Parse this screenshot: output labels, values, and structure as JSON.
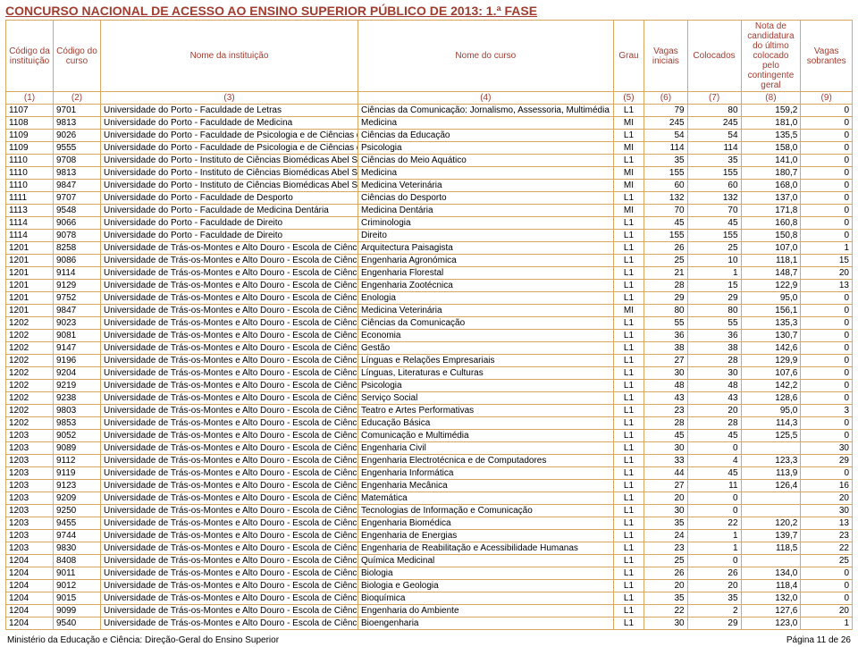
{
  "title": "CONCURSO NACIONAL DE ACESSO AO ENSINO SUPERIOR PÚBLICO DE 2013: 1.ª FASE",
  "headers": {
    "inst": "Código da instituição",
    "curso": "Código do curso",
    "nomeinst": "Nome da instituição",
    "nomecurso": "Nome do curso",
    "grau": "Grau",
    "vi": "Vagas iniciais",
    "col": "Colocados",
    "nota": "Nota de candidatura do último colocado pelo contingente geral",
    "vs": "Vagas sobrantes"
  },
  "subheaders": [
    "(1)",
    "(2)",
    "(3)",
    "(4)",
    "(5)",
    "(6)",
    "(7)",
    "(8)",
    "(9)"
  ],
  "rows": [
    [
      "1107",
      "9701",
      "Universidade do Porto - Faculdade de Letras",
      "Ciências da Comunicação: Jornalismo, Assessoria, Multimédia",
      "L1",
      "79",
      "80",
      "159,2",
      "0"
    ],
    [
      "1108",
      "9813",
      "Universidade do Porto - Faculdade de Medicina",
      "Medicina",
      "MI",
      "245",
      "245",
      "181,0",
      "0"
    ],
    [
      "1109",
      "9026",
      "Universidade do Porto - Faculdade de Psicologia e de Ciências da Educação",
      "Ciências da Educação",
      "L1",
      "54",
      "54",
      "135,5",
      "0"
    ],
    [
      "1109",
      "9555",
      "Universidade do Porto - Faculdade de Psicologia e de Ciências da Educação",
      "Psicologia",
      "MI",
      "114",
      "114",
      "158,0",
      "0"
    ],
    [
      "1110",
      "9708",
      "Universidade do Porto - Instituto de Ciências Biomédicas Abel Salazar",
      "Ciências do Meio Aquático",
      "L1",
      "35",
      "35",
      "141,0",
      "0"
    ],
    [
      "1110",
      "9813",
      "Universidade do Porto - Instituto de Ciências Biomédicas Abel Salazar",
      "Medicina",
      "MI",
      "155",
      "155",
      "180,7",
      "0"
    ],
    [
      "1110",
      "9847",
      "Universidade do Porto - Instituto de Ciências Biomédicas Abel Salazar",
      "Medicina Veterinária",
      "MI",
      "60",
      "60",
      "168,0",
      "0"
    ],
    [
      "1111",
      "9707",
      "Universidade do Porto - Faculdade de Desporto",
      "Ciências do Desporto",
      "L1",
      "132",
      "132",
      "137,0",
      "0"
    ],
    [
      "1113",
      "9548",
      "Universidade do Porto - Faculdade de Medicina Dentária",
      "Medicina Dentária",
      "MI",
      "70",
      "70",
      "171,8",
      "0"
    ],
    [
      "1114",
      "9066",
      "Universidade do Porto - Faculdade de Direito",
      "Criminologia",
      "L1",
      "45",
      "45",
      "160,8",
      "0"
    ],
    [
      "1114",
      "9078",
      "Universidade do Porto - Faculdade de Direito",
      "Direito",
      "L1",
      "155",
      "155",
      "150,8",
      "0"
    ],
    [
      "1201",
      "8258",
      "Universidade de Trás-os-Montes e Alto Douro - Escola de Ciências Agrárias",
      "Arquitectura Paisagista",
      "L1",
      "26",
      "25",
      "107,0",
      "1"
    ],
    [
      "1201",
      "9086",
      "Universidade de Trás-os-Montes e Alto Douro - Escola de Ciências Agrárias",
      "Engenharia Agronómica",
      "L1",
      "25",
      "10",
      "118,1",
      "15"
    ],
    [
      "1201",
      "9114",
      "Universidade de Trás-os-Montes e Alto Douro - Escola de Ciências Agrárias",
      "Engenharia Florestal",
      "L1",
      "21",
      "1",
      "148,7",
      "20"
    ],
    [
      "1201",
      "9129",
      "Universidade de Trás-os-Montes e Alto Douro - Escola de Ciências Agrárias",
      "Engenharia Zootécnica",
      "L1",
      "28",
      "15",
      "122,9",
      "13"
    ],
    [
      "1201",
      "9752",
      "Universidade de Trás-os-Montes e Alto Douro - Escola de Ciências Agrárias",
      "Enologia",
      "L1",
      "29",
      "29",
      "95,0",
      "0"
    ],
    [
      "1201",
      "9847",
      "Universidade de Trás-os-Montes e Alto Douro - Escola de Ciências Agrárias",
      "Medicina Veterinária",
      "MI",
      "80",
      "80",
      "156,1",
      "0"
    ],
    [
      "1202",
      "9023",
      "Universidade de Trás-os-Montes e Alto Douro - Escola de Ciências Humanas e Sociais",
      "Ciências da Comunicação",
      "L1",
      "55",
      "55",
      "135,3",
      "0"
    ],
    [
      "1202",
      "9081",
      "Universidade de Trás-os-Montes e Alto Douro - Escola de Ciências Humanas e Sociais",
      "Economia",
      "L1",
      "36",
      "36",
      "130,7",
      "0"
    ],
    [
      "1202",
      "9147",
      "Universidade de Trás-os-Montes e Alto Douro - Escola de Ciências Humanas e Sociais",
      "Gestão",
      "L1",
      "38",
      "38",
      "142,6",
      "0"
    ],
    [
      "1202",
      "9196",
      "Universidade de Trás-os-Montes e Alto Douro - Escola de Ciências Humanas e Sociais",
      "Línguas e Relações Empresariais",
      "L1",
      "27",
      "28",
      "129,9",
      "0"
    ],
    [
      "1202",
      "9204",
      "Universidade de Trás-os-Montes e Alto Douro - Escola de Ciências Humanas e Sociais",
      "Línguas, Literaturas e Culturas",
      "L1",
      "30",
      "30",
      "107,6",
      "0"
    ],
    [
      "1202",
      "9219",
      "Universidade de Trás-os-Montes e Alto Douro - Escola de Ciências Humanas e Sociais",
      "Psicologia",
      "L1",
      "48",
      "48",
      "142,2",
      "0"
    ],
    [
      "1202",
      "9238",
      "Universidade de Trás-os-Montes e Alto Douro - Escola de Ciências Humanas e Sociais",
      "Serviço Social",
      "L1",
      "43",
      "43",
      "128,6",
      "0"
    ],
    [
      "1202",
      "9803",
      "Universidade de Trás-os-Montes e Alto Douro - Escola de Ciências Humanas e Sociais",
      "Teatro e Artes Performativas",
      "L1",
      "23",
      "20",
      "95,0",
      "3"
    ],
    [
      "1202",
      "9853",
      "Universidade de Trás-os-Montes e Alto Douro - Escola de Ciências Humanas e Sociais",
      "Educação Básica",
      "L1",
      "28",
      "28",
      "114,3",
      "0"
    ],
    [
      "1203",
      "9052",
      "Universidade de Trás-os-Montes e Alto Douro - Escola de Ciências e Tecnologia",
      "Comunicação e Multimédia",
      "L1",
      "45",
      "45",
      "125,5",
      "0"
    ],
    [
      "1203",
      "9089",
      "Universidade de Trás-os-Montes e Alto Douro - Escola de Ciências e Tecnologia",
      "Engenharia Civil",
      "L1",
      "30",
      "0",
      "",
      "30"
    ],
    [
      "1203",
      "9112",
      "Universidade de Trás-os-Montes e Alto Douro - Escola de Ciências e Tecnologia",
      "Engenharia Electrotécnica e de Computadores",
      "L1",
      "33",
      "4",
      "123,3",
      "29"
    ],
    [
      "1203",
      "9119",
      "Universidade de Trás-os-Montes e Alto Douro - Escola de Ciências e Tecnologia",
      "Engenharia Informática",
      "L1",
      "44",
      "45",
      "113,9",
      "0"
    ],
    [
      "1203",
      "9123",
      "Universidade de Trás-os-Montes e Alto Douro - Escola de Ciências e Tecnologia",
      "Engenharia Mecânica",
      "L1",
      "27",
      "11",
      "126,4",
      "16"
    ],
    [
      "1203",
      "9209",
      "Universidade de Trás-os-Montes e Alto Douro - Escola de Ciências e Tecnologia",
      "Matemática",
      "L1",
      "20",
      "0",
      "",
      "20"
    ],
    [
      "1203",
      "9250",
      "Universidade de Trás-os-Montes e Alto Douro - Escola de Ciências e Tecnologia",
      "Tecnologias de Informação e Comunicação",
      "L1",
      "30",
      "0",
      "",
      "30"
    ],
    [
      "1203",
      "9455",
      "Universidade de Trás-os-Montes e Alto Douro - Escola de Ciências e Tecnologia",
      "Engenharia Biomédica",
      "L1",
      "35",
      "22",
      "120,2",
      "13"
    ],
    [
      "1203",
      "9744",
      "Universidade de Trás-os-Montes e Alto Douro - Escola de Ciências e Tecnologia",
      "Engenharia de Energias",
      "L1",
      "24",
      "1",
      "139,7",
      "23"
    ],
    [
      "1203",
      "9830",
      "Universidade de Trás-os-Montes e Alto Douro - Escola de Ciências e Tecnologia",
      "Engenharia de Reabilitação e Acessibilidade Humanas",
      "L1",
      "23",
      "1",
      "118,5",
      "22"
    ],
    [
      "1204",
      "8408",
      "Universidade de Trás-os-Montes e Alto Douro - Escola de Ciências da Vida e do Ambiente",
      "Química Medicinal",
      "L1",
      "25",
      "0",
      "",
      "25"
    ],
    [
      "1204",
      "9011",
      "Universidade de Trás-os-Montes e Alto Douro - Escola de Ciências da Vida e do Ambiente",
      "Biologia",
      "L1",
      "26",
      "26",
      "134,0",
      "0"
    ],
    [
      "1204",
      "9012",
      "Universidade de Trás-os-Montes e Alto Douro - Escola de Ciências da Vida e do Ambiente",
      "Biologia e Geologia",
      "L1",
      "20",
      "20",
      "118,4",
      "0"
    ],
    [
      "1204",
      "9015",
      "Universidade de Trás-os-Montes e Alto Douro - Escola de Ciências da Vida e do Ambiente",
      "Bioquímica",
      "L1",
      "35",
      "35",
      "132,0",
      "0"
    ],
    [
      "1204",
      "9099",
      "Universidade de Trás-os-Montes e Alto Douro - Escola de Ciências da Vida e do Ambiente",
      "Engenharia do Ambiente",
      "L1",
      "22",
      "2",
      "127,6",
      "20"
    ],
    [
      "1204",
      "9540",
      "Universidade de Trás-os-Montes e Alto Douro - Escola de Ciências da Vida e do Ambiente",
      "Bioengenharia",
      "L1",
      "30",
      "29",
      "123,0",
      "1"
    ]
  ],
  "footer": {
    "left": "Ministério da Educação e Ciência: Direção-Geral do Ensino Superior",
    "right": "Página 11 de 26"
  }
}
